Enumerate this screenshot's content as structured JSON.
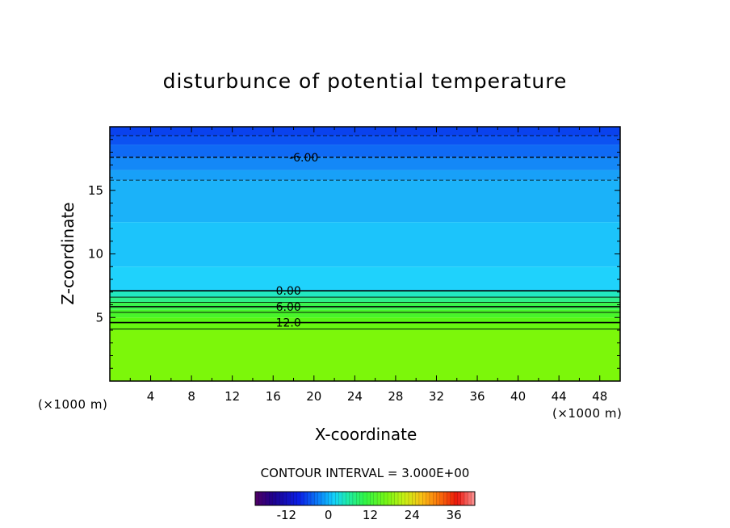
{
  "chart_data": {
    "type": "heatmap",
    "title": "disturbunce of potential temperature",
    "xlabel": "X-coordinate",
    "ylabel": "Z-coordinate",
    "x_unit_left": "(×1000 m)",
    "x_unit_right": "(×1000 m)",
    "xlim": [
      0,
      50
    ],
    "ylim": [
      0,
      20
    ],
    "x_ticks": [
      4,
      8,
      12,
      16,
      20,
      24,
      28,
      32,
      36,
      40,
      44,
      48
    ],
    "y_ticks": [
      5,
      10,
      15
    ],
    "contour_interval_text": "CONTOUR INTERVAL = 3.000E+00",
    "contour_labels": [
      {
        "text": "-6.00",
        "x": 19.0,
        "z": 17.6
      },
      {
        "text": "0.00",
        "x": 17.5,
        "z": 7.1
      },
      {
        "text": "6.00",
        "x": 17.5,
        "z": 5.85
      },
      {
        "text": "12.0",
        "x": 17.5,
        "z": 4.6
      }
    ],
    "colorbar": {
      "range": [
        -21,
        42
      ],
      "ticks": [
        -12,
        0,
        12,
        24,
        36
      ],
      "tick_labels": [
        "-12",
        "0",
        "12",
        "24",
        "36"
      ]
    },
    "field_bands": [
      {
        "z_top": 20.0,
        "value": -10,
        "color": "#0a42ee"
      },
      {
        "z_top": 19.3,
        "value": -9,
        "color": "#0c52f2"
      },
      {
        "z_top": 18.6,
        "value": -7,
        "color": "#0f6af5"
      },
      {
        "z_top": 17.6,
        "value": -6,
        "color": "#1488f7"
      },
      {
        "z_top": 16.6,
        "value": -4,
        "color": "#18a0f8"
      },
      {
        "z_top": 15.8,
        "value": -3,
        "color": "#1bb2f9"
      },
      {
        "z_top": 12.5,
        "value": -2,
        "color": "#1cc4fb"
      },
      {
        "z_top": 9.0,
        "value": -1,
        "color": "#1fd2fc"
      },
      {
        "z_top": 7.1,
        "value": 2,
        "color": "#22e8c0"
      },
      {
        "z_top": 6.6,
        "value": 4,
        "color": "#30ef8a"
      },
      {
        "z_top": 6.2,
        "value": 6,
        "color": "#3af34e"
      },
      {
        "z_top": 5.6,
        "value": 8,
        "color": "#48f52a"
      },
      {
        "z_top": 5.0,
        "value": 11,
        "color": "#58f714"
      },
      {
        "z_top": 4.6,
        "value": 12,
        "color": "#66f810"
      },
      {
        "z_top": 4.0,
        "value": 14,
        "color": "#7cf70a"
      }
    ],
    "negative_contour_z": [
      19.3,
      17.6,
      15.8
    ],
    "positive_contour_z": [
      7.1,
      6.6,
      6.2,
      5.85,
      5.4,
      4.6,
      4.1
    ],
    "grid": false,
    "legend": "bottom"
  }
}
